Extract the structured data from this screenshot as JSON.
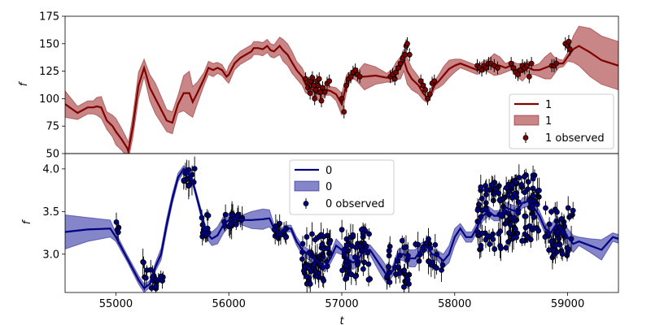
{
  "chart_data": [
    {
      "type": "line",
      "panel": "top",
      "xlabel": "",
      "ylabel": "f",
      "xlim": [
        54550,
        59450
      ],
      "ylim": [
        50,
        175
      ],
      "yticks": [
        50,
        75,
        100,
        125,
        150,
        175
      ],
      "legend_position": "lower-right",
      "colors": {
        "line": "#800000",
        "band": "#b55e5e",
        "points": "#800000"
      },
      "legend": {
        "line_label": "1",
        "band_label": "1",
        "points_label": "1 observed"
      },
      "series": [
        {
          "name": "1",
          "x": [
            54550,
            54660,
            54750,
            54800,
            54830,
            54870,
            54920,
            54970,
            55000,
            55050,
            55100,
            55110,
            55150,
            55200,
            55250,
            55300,
            55350,
            55400,
            55450,
            55500,
            55550,
            55600,
            55650,
            55680,
            55720,
            55780,
            55820,
            55860,
            55900,
            55940,
            55980,
            56000,
            56050,
            56100,
            56150,
            56200,
            56220,
            56260,
            56300,
            56340,
            56370,
            56400,
            56450,
            56480,
            56520,
            56560,
            56600,
            56650,
            56680,
            56720,
            56760,
            56800,
            56830,
            56860,
            56900,
            56950,
            57000,
            57040,
            57060,
            57080,
            57100,
            57120,
            57150,
            57200,
            57300,
            57400,
            57450,
            57480,
            57520,
            57550,
            57580,
            57620,
            57680,
            57720,
            57760,
            57800,
            57820,
            57860,
            57900,
            57950,
            58000,
            58050,
            58100,
            58150,
            58200,
            58250,
            58300,
            58350,
            58400,
            58450,
            58500,
            58550,
            58600,
            58650,
            58700,
            58750,
            58800,
            58850,
            58880,
            58920,
            58960,
            59000,
            59050,
            59100,
            59200,
            59300,
            59450
          ],
          "y": [
            95,
            87,
            92,
            92,
            93,
            92,
            80,
            75,
            70,
            63,
            55,
            52,
            75,
            112,
            128,
            110,
            100,
            90,
            80,
            78,
            95,
            105,
            105,
            97,
            105,
            118,
            128,
            126,
            128,
            126,
            120,
            122,
            132,
            137,
            140,
            143,
            146,
            146,
            145,
            148,
            144,
            143,
            148,
            144,
            140,
            133,
            126,
            120,
            113,
            110,
            106,
            104,
            105,
            108,
            107,
            104,
            95,
            113,
            118,
            120,
            122,
            121,
            120,
            120,
            121,
            119,
            121,
            125,
            128,
            135,
            125,
            118,
            112,
            105,
            100,
            107,
            112,
            116,
            121,
            127,
            130,
            132,
            130,
            128,
            126,
            130,
            130,
            131,
            130,
            128,
            130,
            126,
            124,
            128,
            126,
            126,
            128,
            130,
            130,
            132,
            132,
            138,
            145,
            148,
            142,
            135,
            130
          ],
          "band_half_width": [
            12,
            6,
            6,
            6,
            8,
            10,
            8,
            10,
            12,
            10,
            8,
            8,
            10,
            12,
            8,
            12,
            14,
            12,
            10,
            10,
            8,
            16,
            20,
            14,
            10,
            6,
            6,
            6,
            5,
            5,
            4,
            8,
            6,
            6,
            6,
            6,
            6,
            6,
            6,
            6,
            6,
            6,
            8,
            10,
            10,
            10,
            8,
            8,
            8,
            6,
            6,
            6,
            5,
            5,
            4,
            6,
            10,
            8,
            6,
            4,
            4,
            4,
            6,
            12,
            8,
            4,
            6,
            8,
            10,
            10,
            12,
            10,
            8,
            6,
            4,
            4,
            4,
            6,
            8,
            8,
            6,
            4,
            4,
            4,
            4,
            4,
            6,
            10,
            8,
            4,
            4,
            6,
            8,
            6,
            4,
            6,
            10,
            12,
            8,
            4,
            3,
            4,
            12,
            18,
            22,
            22,
            22
          ]
        }
      ],
      "observed": {
        "name": "1 observed",
        "x": [
          56680,
          56700,
          56710,
          56720,
          56730,
          56740,
          56750,
          56760,
          56770,
          56780,
          56790,
          56800,
          56810,
          56820,
          56830,
          56850,
          56870,
          56890,
          57000,
          57020,
          57040,
          57060,
          57080,
          57100,
          57120,
          57140,
          57160,
          57430,
          57450,
          57470,
          57480,
          57500,
          57520,
          57540,
          57560,
          57570,
          57580,
          57600,
          57700,
          57720,
          57740,
          57760,
          57780,
          57800,
          57820,
          58200,
          58220,
          58240,
          58260,
          58280,
          58300,
          58320,
          58350,
          58380,
          58500,
          58520,
          58540,
          58560,
          58580,
          58600,
          58620,
          58640,
          58660,
          58680,
          58860,
          58880,
          58900,
          58980,
          59000,
          59010,
          59020
        ],
        "y": [
          118,
          110,
          114,
          105,
          116,
          119,
          112,
          100,
          108,
          116,
          112,
          118,
          106,
          98,
          110,
          106,
          114,
          116,
          100,
          88,
          112,
          118,
          120,
          124,
          126,
          122,
          120,
          120,
          122,
          118,
          124,
          128,
          132,
          137,
          140,
          148,
          150,
          140,
          116,
          112,
          108,
          100,
          104,
          114,
          116,
          130,
          128,
          126,
          130,
          128,
          132,
          132,
          130,
          128,
          132,
          128,
          124,
          122,
          126,
          130,
          128,
          130,
          120,
          132,
          130,
          130,
          132,
          150,
          148,
          152,
          145
        ]
      }
    },
    {
      "type": "line",
      "panel": "bottom",
      "xlabel": "t",
      "ylabel": "f",
      "xlim": [
        54550,
        59450
      ],
      "ylim": [
        2.55,
        4.18
      ],
      "xticks": [
        55000,
        56000,
        57000,
        58000,
        59000
      ],
      "yticks": [
        3.0,
        3.5,
        4.0
      ],
      "legend_position": "upper-center",
      "colors": {
        "line": "#000080",
        "band": "#5c5cb8",
        "points": "#000080"
      },
      "legend": {
        "line_label": "0",
        "band_label": "0",
        "points_label": "0 observed"
      },
      "series": [
        {
          "name": "0",
          "x": [
            54550,
            54750,
            54950,
            55000,
            55100,
            55200,
            55250,
            55300,
            55350,
            55400,
            55450,
            55500,
            55550,
            55600,
            55640,
            55680,
            55700,
            55750,
            55780,
            55800,
            55850,
            55900,
            55950,
            56000,
            56050,
            56100,
            56200,
            56300,
            56360,
            56400,
            56450,
            56500,
            56550,
            56600,
            56650,
            56700,
            56750,
            56800,
            56850,
            56900,
            56950,
            57000,
            57050,
            57100,
            57150,
            57200,
            57250,
            57300,
            57350,
            57400,
            57450,
            57500,
            57550,
            57600,
            57650,
            57700,
            57750,
            57800,
            57850,
            57900,
            57950,
            58000,
            58050,
            58100,
            58150,
            58200,
            58250,
            58300,
            58350,
            58400,
            58450,
            58500,
            58550,
            58600,
            58650,
            58700,
            58750,
            58800,
            58850,
            58900,
            58950,
            59000,
            59050,
            59100,
            59200,
            59300,
            59400,
            59450
          ],
          "y": [
            3.26,
            3.29,
            3.3,
            3.2,
            2.95,
            2.7,
            2.6,
            2.65,
            2.85,
            3.0,
            3.35,
            3.65,
            3.9,
            4.0,
            3.95,
            3.85,
            3.75,
            3.5,
            3.35,
            3.25,
            3.18,
            3.22,
            3.34,
            3.4,
            3.42,
            3.4,
            3.4,
            3.41,
            3.42,
            3.3,
            3.25,
            3.3,
            3.3,
            3.15,
            3.05,
            3.0,
            2.95,
            2.9,
            2.85,
            2.95,
            3.1,
            3.05,
            2.95,
            2.9,
            2.95,
            3.05,
            3.05,
            2.95,
            2.85,
            2.75,
            2.8,
            3.0,
            3.0,
            2.95,
            2.95,
            3.05,
            3.1,
            3.0,
            2.98,
            2.92,
            3.0,
            3.2,
            3.3,
            3.2,
            3.2,
            3.32,
            3.45,
            3.5,
            3.45,
            3.45,
            3.55,
            3.52,
            3.5,
            3.6,
            3.62,
            3.55,
            3.45,
            3.3,
            3.25,
            3.35,
            3.3,
            3.2,
            3.12,
            3.15,
            3.1,
            3.05,
            3.2,
            3.18
          ],
          "band_half_width": [
            0.2,
            0.14,
            0.1,
            0.05,
            0.04,
            0.05,
            0.05,
            0.04,
            0.05,
            0.07,
            0.07,
            0.06,
            0.05,
            0.04,
            0.04,
            0.04,
            0.04,
            0.05,
            0.05,
            0.06,
            0.08,
            0.1,
            0.1,
            0.08,
            0.05,
            0.05,
            0.1,
            0.12,
            0.1,
            0.05,
            0.04,
            0.04,
            0.04,
            0.05,
            0.06,
            0.06,
            0.06,
            0.06,
            0.06,
            0.06,
            0.08,
            0.06,
            0.06,
            0.08,
            0.08,
            0.06,
            0.06,
            0.08,
            0.1,
            0.1,
            0.06,
            0.06,
            0.08,
            0.1,
            0.1,
            0.08,
            0.06,
            0.06,
            0.06,
            0.08,
            0.1,
            0.1,
            0.06,
            0.06,
            0.06,
            0.06,
            0.06,
            0.06,
            0.06,
            0.06,
            0.06,
            0.06,
            0.06,
            0.06,
            0.06,
            0.06,
            0.06,
            0.06,
            0.08,
            0.1,
            0.1,
            0.1,
            0.1,
            0.05,
            0.08,
            0.12,
            0.05,
            0.05
          ]
        }
      ],
      "observed_note_regions": [
        {
          "x_start": 55000,
          "x_end": 55050,
          "y_center": 3.3,
          "spread": 0.1,
          "count": 4
        },
        {
          "x_start": 55230,
          "x_end": 55420,
          "y_center": 2.75,
          "spread": 0.18,
          "count": 18
        },
        {
          "x_start": 55600,
          "x_end": 55700,
          "y_center": 3.9,
          "spread": 0.12,
          "count": 14
        },
        {
          "x_start": 55760,
          "x_end": 55830,
          "y_center": 3.35,
          "spread": 0.15,
          "count": 12
        },
        {
          "x_start": 55950,
          "x_end": 56120,
          "y_center": 3.4,
          "spread": 0.08,
          "count": 22
        },
        {
          "x_start": 56400,
          "x_end": 56520,
          "y_center": 3.28,
          "spread": 0.1,
          "count": 14
        },
        {
          "x_start": 56650,
          "x_end": 56900,
          "y_center": 2.95,
          "spread": 0.3,
          "count": 60
        },
        {
          "x_start": 57000,
          "x_end": 57250,
          "y_center": 3.0,
          "spread": 0.3,
          "count": 50
        },
        {
          "x_start": 57400,
          "x_end": 57600,
          "y_center": 2.9,
          "spread": 0.3,
          "count": 30
        },
        {
          "x_start": 57650,
          "x_end": 57900,
          "y_center": 3.0,
          "spread": 0.2,
          "count": 20
        },
        {
          "x_start": 58200,
          "x_end": 58500,
          "y_center": 3.45,
          "spread": 0.4,
          "count": 70
        },
        {
          "x_start": 58500,
          "x_end": 58750,
          "y_center": 3.55,
          "spread": 0.4,
          "count": 70
        },
        {
          "x_start": 58800,
          "x_end": 59050,
          "y_center": 3.25,
          "spread": 0.3,
          "count": 50
        }
      ]
    }
  ]
}
